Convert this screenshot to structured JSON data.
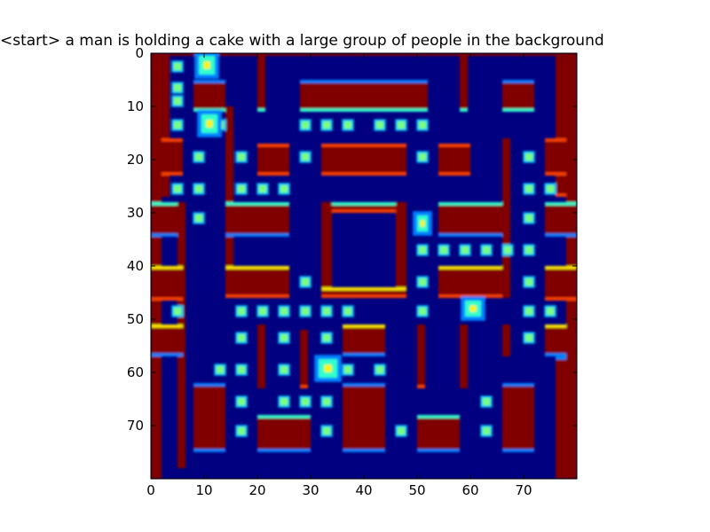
{
  "title": "<start> a man is holding a cake with a large group of people in the background",
  "colormap": "jet",
  "colors": {
    "background": "#000080",
    "wall": "#800000",
    "edge_orange": "#ff4000",
    "edge_yellow": "#ffe800",
    "edge_cyan": "#33ffcc",
    "edge_blue": "#0080ff",
    "pellet": "#7cff7c",
    "pellet_halo": "#00c8ff",
    "sprite": "#fff000"
  },
  "axes": {
    "x_ticks": [
      "0",
      "10",
      "20",
      "30",
      "40",
      "50",
      "60",
      "70"
    ],
    "y_ticks": [
      "0",
      "10",
      "20",
      "30",
      "40",
      "50",
      "60",
      "70"
    ],
    "xlim": [
      0,
      80
    ],
    "ylim": [
      80,
      0
    ]
  }
}
